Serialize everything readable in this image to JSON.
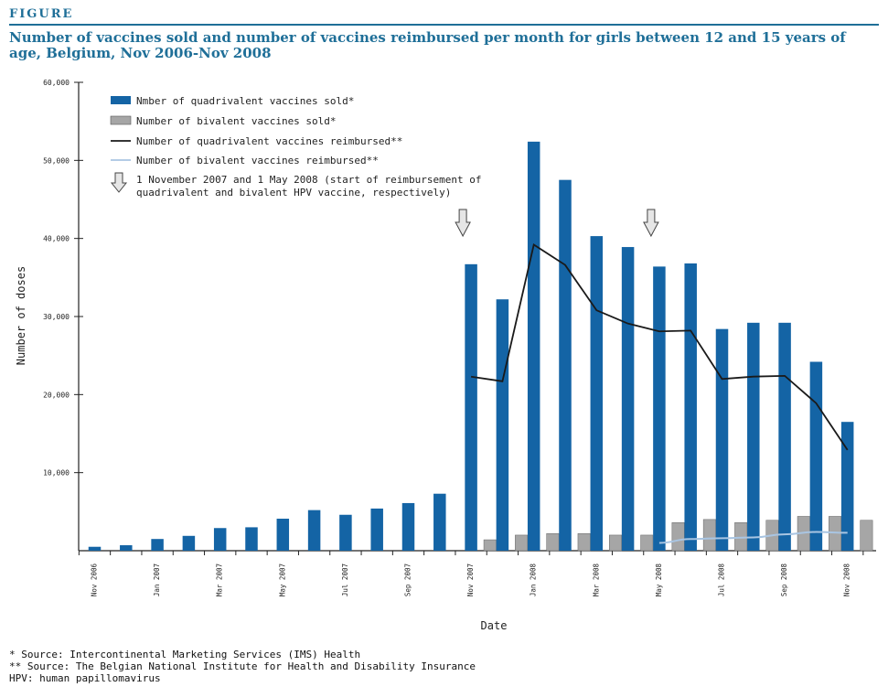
{
  "figure_label": "FIGURE",
  "title": "Number of vaccines sold and number of vaccines reimbursed per month for girls between 12 and 15 years of age, Belgium, Nov 2006-Nov 2008",
  "footnotes": [
    "* Source: Intercontinental Marketing Services (IMS)  Health",
    "** Source: The Belgian National Institute for Health and Disability Insurance",
    "HPV: human papillomavirus"
  ],
  "colors": {
    "accent": "#1f6f98",
    "quadrivalent_bar": "#1464a5",
    "bivalent_bar": "#a6a6a6",
    "quadrivalent_line": "#1a1a1a",
    "bivalent_line": "#a9c5e2"
  },
  "chart_data": {
    "type": "bar",
    "title": "Number of vaccines sold and number of vaccines reimbursed per month for girls between 12 and 15 years of age, Belgium, Nov 2006-Nov 2008",
    "xlabel": "Date",
    "ylabel": "Number of doses",
    "ylim": [
      0,
      60000
    ],
    "yticks": [
      10000,
      20000,
      30000,
      40000,
      50000,
      60000
    ],
    "ytick_labels": [
      "10,000",
      "20,000",
      "30,000",
      "40,000",
      "50,000",
      "60,000"
    ],
    "categories": [
      "Nov 2006",
      "Dec 2006",
      "Jan 2007",
      "Feb 2007",
      "Mar 2007",
      "Apr 2007",
      "May 2007",
      "Jun 2007",
      "Jul 2007",
      "Aug 2007",
      "Sep 2007",
      "Oct 2007",
      "Nov 2007",
      "Dec 2007",
      "Jan 2008",
      "Feb 2008",
      "Mar 2008",
      "Apr 2008",
      "May 2008",
      "Jun 2008",
      "Jul 2008",
      "Aug 2008",
      "Sep 2008",
      "Oct 2008",
      "Nov 2008"
    ],
    "xtick_labels": [
      "Nov 2006",
      "",
      "Jan 2007",
      "",
      "Mar 2007",
      "",
      "May 2007",
      "",
      "Jul 2007",
      "",
      "Sep 2007",
      "",
      "Nov 2007",
      "",
      "Jan 2008",
      "",
      "Mar 2008",
      "",
      "May 2008",
      "",
      "Jul 2008",
      "",
      "Sep 2008",
      "",
      "Nov 2008"
    ],
    "series": [
      {
        "name": "Nmber of quadrivalent vaccines sold*",
        "kind": "bar",
        "color": "#1464a5",
        "values": [
          500,
          700,
          1500,
          1900,
          2900,
          3000,
          4100,
          5200,
          4600,
          5400,
          6100,
          7300,
          36700,
          32200,
          52400,
          47500,
          40300,
          38900,
          36400,
          36800,
          28400,
          29200,
          29200,
          24200,
          16500
        ]
      },
      {
        "name": "Number of bivalent vaccines sold*",
        "kind": "bar",
        "color": "#a6a6a6",
        "values": [
          null,
          null,
          null,
          null,
          null,
          null,
          null,
          null,
          null,
          null,
          null,
          null,
          1400,
          2000,
          2200,
          2200,
          2000,
          2000,
          3600,
          4000,
          3600,
          3900,
          4400,
          4400,
          3900
        ]
      },
      {
        "name": "Number of quadrivalent vaccines reimbursed**",
        "kind": "line",
        "color": "#1a1a1a",
        "values": [
          null,
          null,
          null,
          null,
          null,
          null,
          null,
          null,
          null,
          null,
          null,
          null,
          22300,
          21700,
          39200,
          36600,
          30800,
          29100,
          28100,
          28200,
          22000,
          22300,
          22400,
          18900,
          12900
        ]
      },
      {
        "name": "Number of bivalent vaccines reimbursed**",
        "kind": "line",
        "color": "#a9c5e2",
        "values": [
          null,
          null,
          null,
          null,
          null,
          null,
          null,
          null,
          null,
          null,
          null,
          null,
          null,
          null,
          null,
          null,
          null,
          null,
          1000,
          1500,
          1600,
          1700,
          2100,
          2400,
          2300
        ]
      }
    ],
    "annotation": {
      "label": "1 November 2007 and 1 May 2008 (start of reimbursement of quadrivalent and bivalent HPV vaccine, respectively)",
      "markers_at": [
        "Nov 2007",
        "May 2008"
      ]
    },
    "legend_position": "top-left",
    "grid": false
  }
}
